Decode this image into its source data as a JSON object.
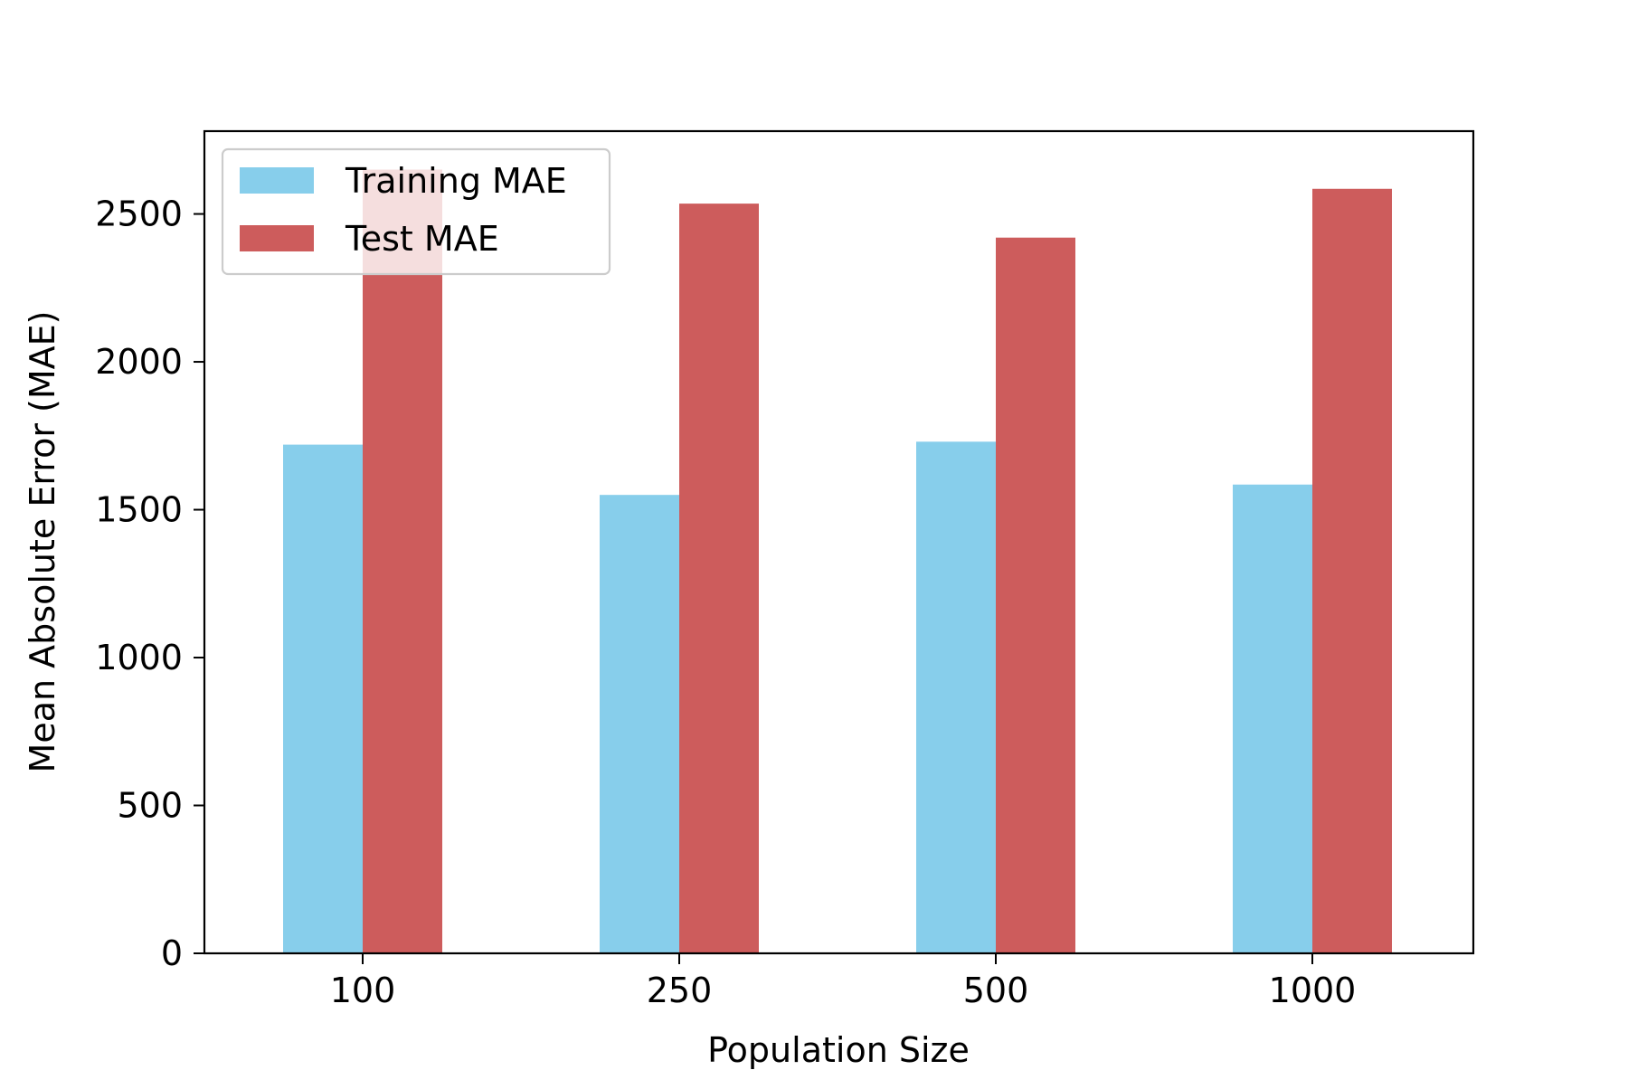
{
  "chart_data": {
    "type": "bar",
    "title": "",
    "xlabel": "Population Size",
    "ylabel": "Mean Absolute Error (MAE)",
    "categories": [
      "100",
      "250",
      "500",
      "1000"
    ],
    "series": [
      {
        "name": "Training MAE",
        "values": [
          1720,
          1550,
          1730,
          1585
        ],
        "color": "#87ceeb"
      },
      {
        "name": "Test MAE",
        "values": [
          2650,
          2535,
          2420,
          2585
        ],
        "color": "#cd5c5c"
      }
    ],
    "ylim": [
      0,
      2780
    ],
    "yticks": [
      0,
      500,
      1000,
      1500,
      2000,
      2500
    ],
    "grid": false,
    "legend_position": "upper-left"
  }
}
